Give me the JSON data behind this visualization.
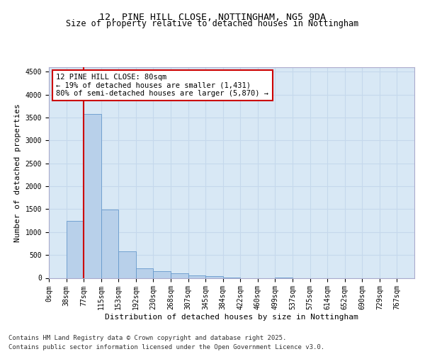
{
  "title_line1": "12, PINE HILL CLOSE, NOTTINGHAM, NG5 9DA",
  "title_line2": "Size of property relative to detached houses in Nottingham",
  "xlabel": "Distribution of detached houses by size in Nottingham",
  "ylabel": "Number of detached properties",
  "bar_color": "#b8d0ea",
  "bar_edge_color": "#6699cc",
  "grid_color": "#c5d8ec",
  "background_color": "#d8e8f5",
  "annotation_box_color": "#cc0000",
  "vline_color": "#cc0000",
  "tick_labels": [
    "0sqm",
    "38sqm",
    "77sqm",
    "115sqm",
    "153sqm",
    "192sqm",
    "230sqm",
    "268sqm",
    "307sqm",
    "345sqm",
    "384sqm",
    "422sqm",
    "460sqm",
    "499sqm",
    "537sqm",
    "575sqm",
    "614sqm",
    "652sqm",
    "690sqm",
    "729sqm",
    "767sqm"
  ],
  "bar_values": [
    0,
    1250,
    3580,
    1490,
    575,
    215,
    145,
    100,
    55,
    35,
    10,
    0,
    0,
    5,
    0,
    0,
    0,
    0,
    0,
    0,
    0
  ],
  "vline_position": 2.0,
  "property_size": "80sqm",
  "pct_smaller": 19,
  "count_smaller": 1431,
  "pct_larger_semi": 80,
  "count_larger_semi": 5870,
  "ylim": [
    0,
    4600
  ],
  "yticks": [
    0,
    500,
    1000,
    1500,
    2000,
    2500,
    3000,
    3500,
    4000,
    4500
  ],
  "footnote1": "Contains HM Land Registry data © Crown copyright and database right 2025.",
  "footnote2": "Contains public sector information licensed under the Open Government Licence v3.0.",
  "title_fontsize": 9.5,
  "subtitle_fontsize": 8.5,
  "axis_label_fontsize": 8,
  "tick_fontsize": 7,
  "annotation_fontsize": 7.5,
  "footnote_fontsize": 6.5
}
